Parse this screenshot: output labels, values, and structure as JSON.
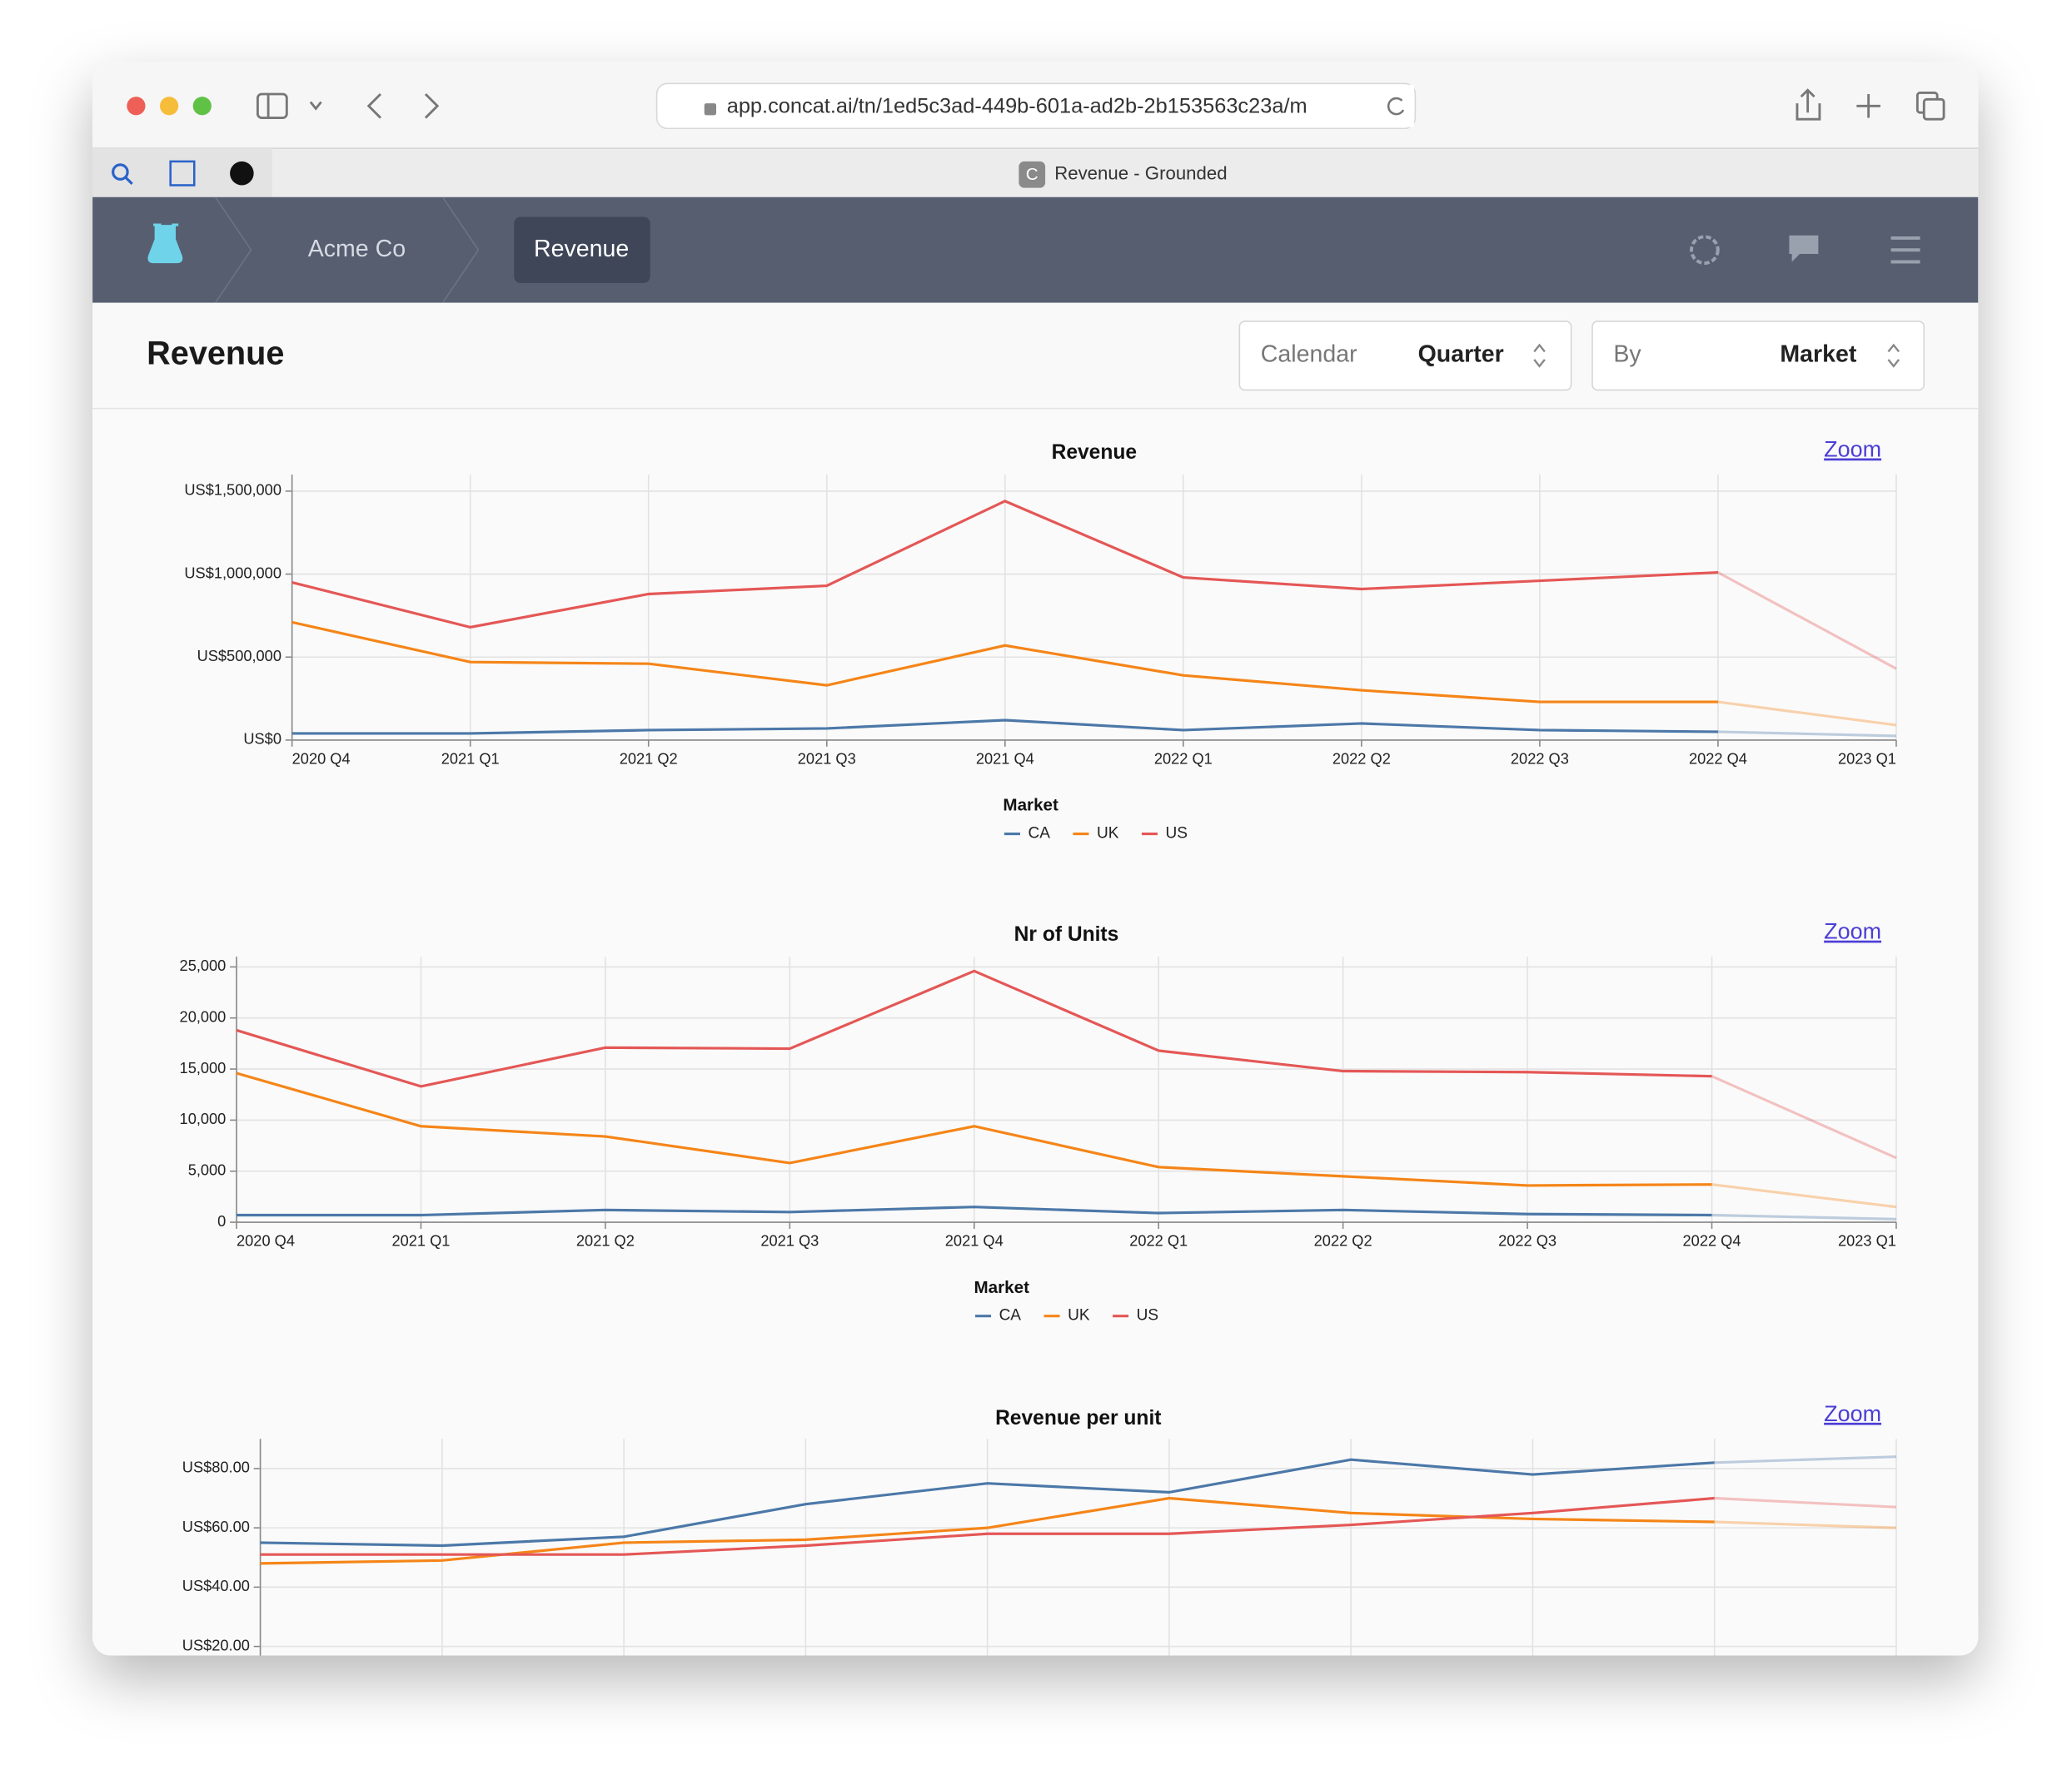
{
  "browser": {
    "url": "app.concat.ai/tn/1ed5c3ad-449b-601a-ad2b-2b153563c23a/m",
    "tab_icon": "C",
    "tab_title": "Revenue - Grounded"
  },
  "nav": {
    "breadcrumbs": [
      "Acme Co",
      "Revenue"
    ]
  },
  "header": {
    "title": "Revenue",
    "controls": [
      {
        "label": "Calendar",
        "value": "Quarter"
      },
      {
        "label": "By",
        "value": "Market"
      }
    ]
  },
  "zoom_links": [
    "Zoom",
    "Zoom",
    "Zoom"
  ],
  "chart_data": [
    {
      "type": "line",
      "title": "Revenue",
      "grid": true,
      "faded_last_point": true,
      "legend_title": "Market",
      "categories": [
        "2020 Q4",
        "2021 Q1",
        "2021 Q2",
        "2021 Q3",
        "2021 Q4",
        "2022 Q1",
        "2022 Q2",
        "2022 Q3",
        "2022 Q4",
        "2023 Q1"
      ],
      "series": [
        {
          "name": "CA",
          "color": "#4c78a8",
          "values": [
            40000,
            40000,
            60000,
            70000,
            120000,
            60000,
            100000,
            60000,
            50000,
            25000
          ]
        },
        {
          "name": "UK",
          "color": "#f58518",
          "values": [
            710000,
            470000,
            460000,
            330000,
            570000,
            390000,
            300000,
            230000,
            230000,
            90000
          ]
        },
        {
          "name": "US",
          "color": "#e45756",
          "values": [
            950000,
            680000,
            880000,
            930000,
            1440000,
            980000,
            910000,
            960000,
            1010000,
            430000
          ]
        }
      ],
      "ylim": [
        0,
        1600000
      ],
      "yticks": [
        {
          "value": 0,
          "label": "US$0"
        },
        {
          "value": 500000,
          "label": "US$500,000"
        },
        {
          "value": 1000000,
          "label": "US$1,000,000"
        },
        {
          "value": 1500000,
          "label": "US$1,500,000"
        }
      ]
    },
    {
      "type": "line",
      "title": "Nr of Units",
      "grid": true,
      "faded_last_point": true,
      "legend_title": "Market",
      "categories": [
        "2020 Q4",
        "2021 Q1",
        "2021 Q2",
        "2021 Q3",
        "2021 Q4",
        "2022 Q1",
        "2022 Q2",
        "2022 Q3",
        "2022 Q4",
        "2023 Q1"
      ],
      "series": [
        {
          "name": "CA",
          "color": "#4c78a8",
          "values": [
            700,
            700,
            1200,
            1000,
            1500,
            900,
            1200,
            800,
            700,
            300
          ]
        },
        {
          "name": "UK",
          "color": "#f58518",
          "values": [
            14600,
            9400,
            8400,
            5800,
            9400,
            5400,
            4500,
            3600,
            3700,
            1500
          ]
        },
        {
          "name": "US",
          "color": "#e45756",
          "values": [
            18800,
            13300,
            17100,
            17000,
            24600,
            16800,
            14800,
            14700,
            14300,
            6300
          ]
        }
      ],
      "ylim": [
        0,
        26000
      ],
      "yticks": [
        0,
        {
          "value": 5000,
          "label": "5,000"
        },
        {
          "value": 10000,
          "label": "10,000"
        },
        {
          "value": 15000,
          "label": "15,000"
        },
        {
          "value": 20000,
          "label": "20,000"
        },
        {
          "value": 25000,
          "label": "25,000"
        }
      ]
    },
    {
      "type": "line",
      "title": "Revenue per unit",
      "grid": true,
      "faded_last_point": true,
      "series": [
        {
          "name": "CA",
          "color": "#4c78a8",
          "values": [
            55,
            54,
            57,
            68,
            75,
            72,
            83,
            78,
            82,
            84
          ]
        },
        {
          "name": "UK",
          "color": "#f58518",
          "values": [
            48,
            49,
            55,
            56,
            60,
            70,
            65,
            63,
            62,
            60
          ]
        },
        {
          "name": "US",
          "color": "#e45756",
          "values": [
            51,
            51,
            51,
            54,
            58,
            58,
            61,
            65,
            70,
            67
          ]
        }
      ],
      "ylim": [
        0,
        90
      ],
      "yticks": [
        {
          "value": 20,
          "label": "US$20.00"
        },
        {
          "value": 40,
          "label": "US$40.00"
        },
        {
          "value": 60,
          "label": "US$60.00"
        },
        {
          "value": 80,
          "label": "US$80.00"
        }
      ]
    }
  ]
}
